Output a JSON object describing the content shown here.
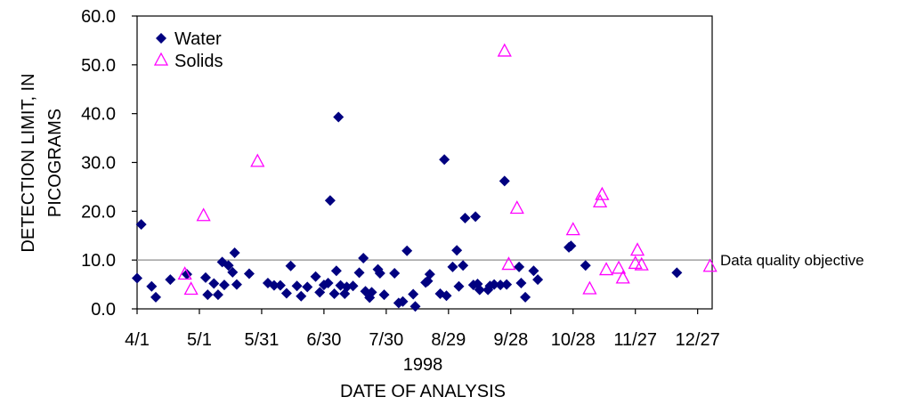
{
  "chart_data": {
    "type": "scatter",
    "title": "",
    "xlabel": "DATE OF ANALYSIS",
    "xlabel_year": "1998",
    "ylabel_line1": "DETECTION LIMIT, IN",
    "ylabel_line2": "PICOGRAMS",
    "x_axis": {
      "type": "date",
      "range": [
        "1998-04-01",
        "1999-01-03"
      ],
      "tick_dates": [
        "1998-04-01",
        "1998-05-01",
        "1998-05-31",
        "1998-06-30",
        "1998-07-30",
        "1998-08-29",
        "1998-09-28",
        "1998-10-28",
        "1998-11-27",
        "1998-12-27"
      ],
      "tick_labels": [
        "4/1",
        "5/1",
        "5/31",
        "6/30",
        "7/30",
        "8/29",
        "9/28",
        "10/28",
        "11/27",
        "12/27"
      ]
    },
    "y_axis": {
      "range": [
        0,
        60
      ],
      "ticks": [
        0,
        10,
        20,
        30,
        40,
        50,
        60
      ],
      "tick_labels": [
        "0.0",
        "10.0",
        "20.0",
        "30.0",
        "40.0",
        "50.0",
        "60.0"
      ]
    },
    "grid": false,
    "legend_position": "top-left",
    "reference_line": {
      "y": 10,
      "label": "Data quality objective",
      "color": "#a0a0a0"
    },
    "series": [
      {
        "name": "Water",
        "marker": "diamond",
        "color": "#000080",
        "points": [
          [
            "1998-04-01",
            6.3
          ],
          [
            "1998-04-03",
            17.3
          ],
          [
            "1998-04-08",
            4.6
          ],
          [
            "1998-04-10",
            2.4
          ],
          [
            "1998-04-17",
            6.0
          ],
          [
            "1998-04-25",
            7.1
          ],
          [
            "1998-05-04",
            6.4
          ],
          [
            "1998-05-05",
            2.9
          ],
          [
            "1998-05-08",
            5.2
          ],
          [
            "1998-05-10",
            2.9
          ],
          [
            "1998-05-12",
            9.6
          ],
          [
            "1998-05-13",
            4.9
          ],
          [
            "1998-05-15",
            8.9
          ],
          [
            "1998-05-17",
            7.5
          ],
          [
            "1998-05-18",
            11.5
          ],
          [
            "1998-05-19",
            5.0
          ],
          [
            "1998-05-25",
            7.2
          ],
          [
            "1998-06-03",
            5.3
          ],
          [
            "1998-06-06",
            4.8
          ],
          [
            "1998-06-09",
            4.8
          ],
          [
            "1998-06-12",
            3.2
          ],
          [
            "1998-06-14",
            8.8
          ],
          [
            "1998-06-17",
            4.7
          ],
          [
            "1998-06-19",
            2.6
          ],
          [
            "1998-06-22",
            4.5
          ],
          [
            "1998-06-26",
            6.6
          ],
          [
            "1998-06-28",
            3.4
          ],
          [
            "1998-06-30",
            4.9
          ],
          [
            "1998-07-02",
            5.3
          ],
          [
            "1998-07-03",
            22.2
          ],
          [
            "1998-07-05",
            3.1
          ],
          [
            "1998-07-06",
            7.8
          ],
          [
            "1998-07-07",
            39.3
          ],
          [
            "1998-07-08",
            4.8
          ],
          [
            "1998-07-10",
            3.1
          ],
          [
            "1998-07-11",
            4.5
          ],
          [
            "1998-07-14",
            4.7
          ],
          [
            "1998-07-17",
            7.4
          ],
          [
            "1998-07-19",
            10.4
          ],
          [
            "1998-07-20",
            3.6
          ],
          [
            "1998-07-22",
            2.3
          ],
          [
            "1998-07-23",
            3.4
          ],
          [
            "1998-07-26",
            8.1
          ],
          [
            "1998-07-27",
            7.3
          ],
          [
            "1998-07-29",
            2.9
          ],
          [
            "1998-08-03",
            7.3
          ],
          [
            "1998-08-05",
            1.2
          ],
          [
            "1998-08-07",
            1.5
          ],
          [
            "1998-08-09",
            11.9
          ],
          [
            "1998-08-12",
            3.0
          ],
          [
            "1998-08-13",
            0.5
          ],
          [
            "1998-08-18",
            5.4
          ],
          [
            "1998-08-19",
            5.7
          ],
          [
            "1998-08-20",
            7.1
          ],
          [
            "1998-08-25",
            3.1
          ],
          [
            "1998-08-27",
            30.6
          ],
          [
            "1998-08-28",
            2.7
          ],
          [
            "1998-08-31",
            8.6
          ],
          [
            "1998-09-02",
            12.0
          ],
          [
            "1998-09-03",
            4.6
          ],
          [
            "1998-09-05",
            8.9
          ],
          [
            "1998-09-06",
            18.6
          ],
          [
            "1998-09-10",
            4.9
          ],
          [
            "1998-09-11",
            18.9
          ],
          [
            "1998-09-12",
            5.1
          ],
          [
            "1998-09-13",
            3.9
          ],
          [
            "1998-09-17",
            3.9
          ],
          [
            "1998-09-18",
            4.7
          ],
          [
            "1998-09-20",
            5.0
          ],
          [
            "1998-09-23",
            4.9
          ],
          [
            "1998-09-25",
            26.2
          ],
          [
            "1998-09-26",
            5.0
          ],
          [
            "1998-10-02",
            8.6
          ],
          [
            "1998-10-03",
            5.3
          ],
          [
            "1998-10-05",
            2.4
          ],
          [
            "1998-10-09",
            7.8
          ],
          [
            "1998-10-11",
            6.0
          ],
          [
            "1998-10-26",
            12.6
          ],
          [
            "1998-10-27",
            12.9
          ],
          [
            "1998-11-03",
            8.9
          ],
          [
            "1998-12-17",
            7.4
          ]
        ]
      },
      {
        "name": "Solids",
        "marker": "open-triangle",
        "color": "#ff00ff",
        "points": [
          [
            "1998-04-24",
            7.2
          ],
          [
            "1998-04-27",
            4.1
          ],
          [
            "1998-05-03",
            19.2
          ],
          [
            "1998-05-29",
            30.3
          ],
          [
            "1998-09-25",
            52.9
          ],
          [
            "1998-09-27",
            9.2
          ],
          [
            "1998-10-01",
            20.7
          ],
          [
            "1998-10-28",
            16.3
          ],
          [
            "1998-11-05",
            4.2
          ],
          [
            "1998-11-10",
            22.0
          ],
          [
            "1998-11-11",
            23.5
          ],
          [
            "1998-11-13",
            8.1
          ],
          [
            "1998-11-19",
            8.4
          ],
          [
            "1998-11-21",
            6.4
          ],
          [
            "1998-11-27",
            9.4
          ],
          [
            "1998-11-28",
            12.1
          ],
          [
            "1998-11-30",
            9.1
          ],
          [
            "1999-01-02",
            8.8
          ]
        ]
      }
    ]
  }
}
